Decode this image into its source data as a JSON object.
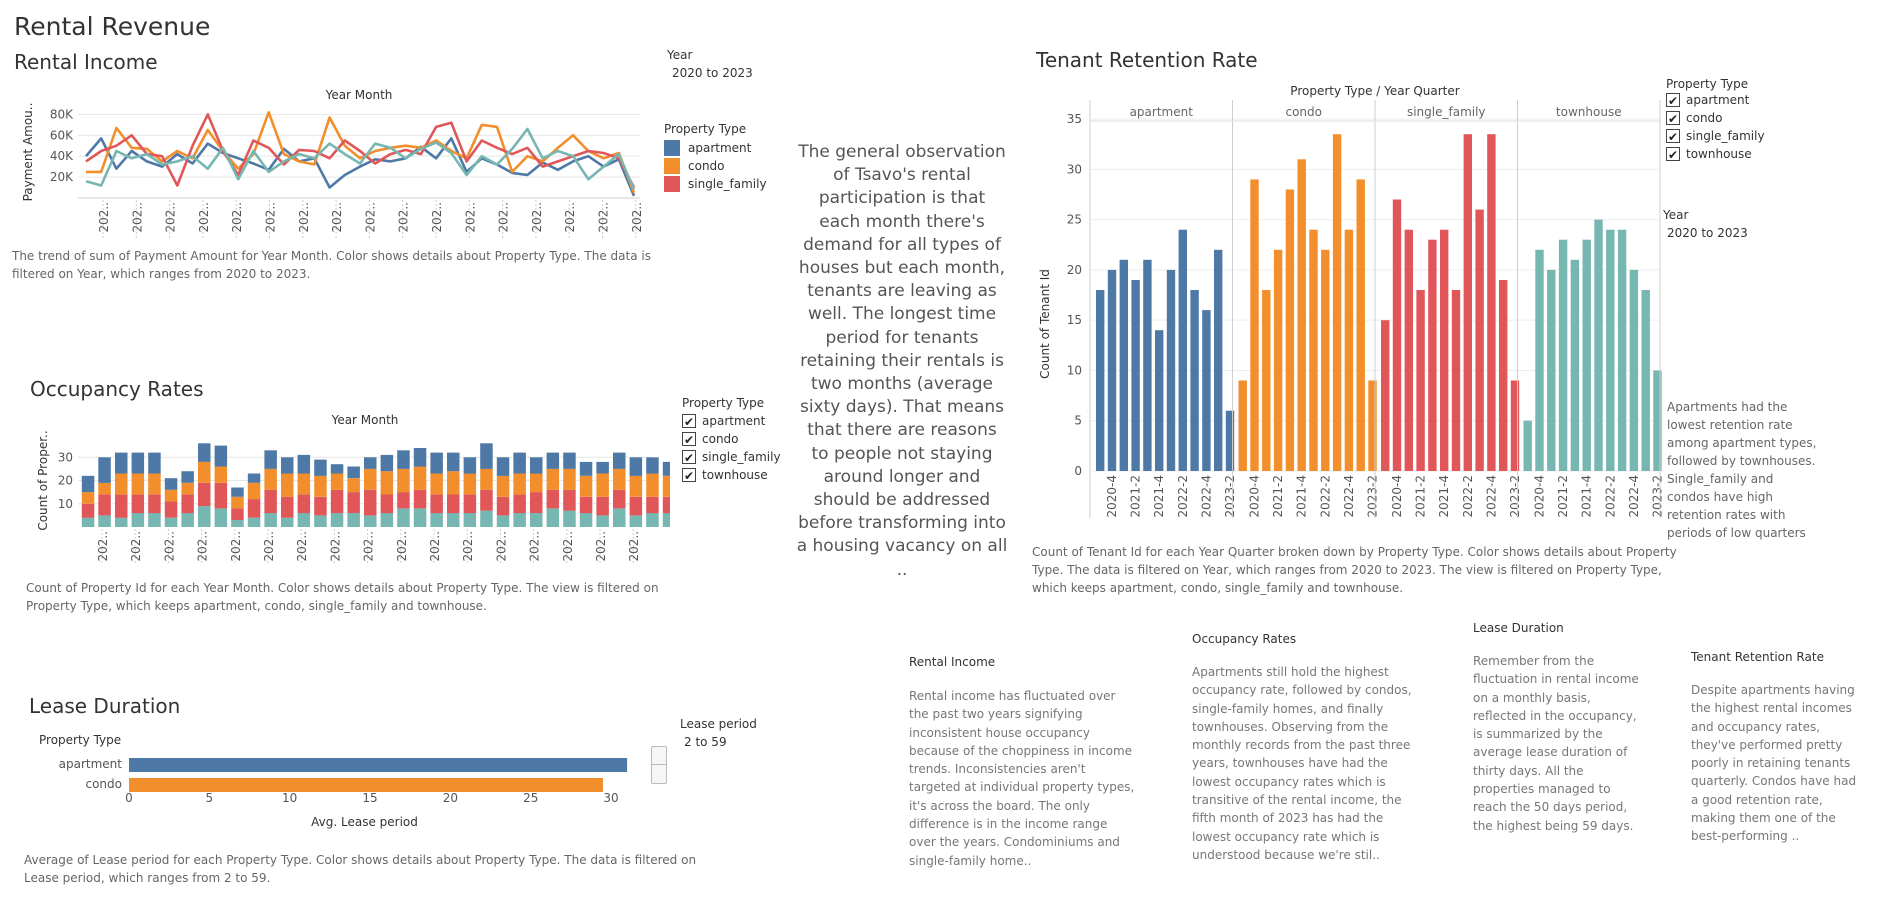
{
  "dashboard_title": "Rental Revenue",
  "rental_income": {
    "title": "Rental Income",
    "year_filter": {
      "label": "Year",
      "value": "2020 to 2023"
    },
    "legend": {
      "title": "Property Type",
      "items": [
        "apartment",
        "condo",
        "single_family"
      ]
    },
    "caption_1": "The trend of sum of Payment Amount for Year Month.  Color shows details about Property Type. The data is",
    "caption_2": "filtered on Year, which ranges from 2020 to 2023."
  },
  "occupancy": {
    "title": "Occupancy Rates",
    "legend": {
      "title": "Property Type",
      "items": [
        "apartment",
        "condo",
        "single_family",
        "townhouse"
      ]
    },
    "caption_1": "Count of Property Id for each Year Month.  Color shows details about Property Type. The view is filtered on",
    "caption_2": "Property Type, which keeps apartment, condo, single_family and townhouse."
  },
  "lease": {
    "title": "Lease   Duration",
    "filter": {
      "label": "Lease period",
      "value": "2 to 59"
    },
    "caption_1": "Average of Lease period for each Property Type.  Color shows details about Property Type. The data is filtered on",
    "caption_2": "Lease period, which ranges from 2 to 59."
  },
  "observation": "The general observation of Tsavo's rental participation is that each month there's demand for all types of houses but each month, tenants are leaving as well. The longest time period for tenants retaining their rentals is two months (average sixty days). That means that there are reasons to people not staying around longer and should be addressed before transforming into a housing vacancy on all ..",
  "retention": {
    "title": "Tenant Retention Rate",
    "legend": {
      "title": "Property Type",
      "items": [
        "apartment",
        "condo",
        "single_family",
        "townhouse"
      ]
    },
    "year_filter": {
      "label": "Year",
      "value": "2020 to 2023"
    },
    "side_note": "Apartments had the lowest retention rate among apartment types, followed by townhouses. Single_family and condos have high retention rates with periods of low quarters",
    "caption_1": "Count of Tenant Id for each Year Quarter broken down by Property Type.  Color shows details about Property",
    "caption_2": "Type. The data is filtered on Year, which ranges from 2020 to 2023. The view is filtered on Property Type,",
    "caption_3": "which keeps apartment, condo, single_family and townhouse."
  },
  "notes": [
    {
      "title": "Rental Income",
      "text": "Rental income has fluctuated over the past two years signifying inconsistent house occupancy because of the choppiness in income trends. Inconsistencies aren't targeted at individual property types, it's across the board. The only difference is in the income range over the years. Condominiums and single-family home.."
    },
    {
      "title": "Occupancy Rates",
      "text": "Apartments still hold the highest occupancy rate, followed by condos, single-family homes, and finally townhouses. Observing from the monthly records from the past three years, townhouses have had the lowest occupancy rates which is transitive of the rental income, the fifth month of 2023 has had the lowest occupancy rate which is understood because we're stil.."
    },
    {
      "title": "Lease Duration",
      "text": "Remember from the fluctuation in rental income on a monthly basis, reflected in the occupancy, is summarized by the average lease duration of thirty days. All the properties managed to reach the 50 days period, the highest being 59 days."
    },
    {
      "title": "Tenant Retention Rate",
      "text": "Despite apartments having the highest rental incomes and occupancy rates, they've performed pretty poorly in retaining tenants quarterly. Condos have had a good retention rate, making them one of the best-performing .."
    }
  ],
  "colors": {
    "apartment": "#4e79a7",
    "condo": "#f28e2b",
    "single_family": "#e15759",
    "townhouse": "#76b7b2"
  },
  "chart_data": [
    {
      "type": "line",
      "chart": "Rental Income",
      "xlabel": "Year Month",
      "ylabel": "Payment Amou..",
      "y_ticks": [
        "20K",
        "40K",
        "60K",
        "80K"
      ],
      "ylim": [
        0,
        88000
      ],
      "x_tick_label": "202..",
      "series": [
        {
          "name": "apartment",
          "values": [
            40000,
            57000,
            28000,
            45000,
            35000,
            30000,
            42000,
            33000,
            52000,
            43000,
            38000,
            33000,
            27000,
            47000,
            35000,
            38000,
            10000,
            22000,
            30000,
            37000,
            35000,
            38000,
            49000,
            38000,
            57000,
            25000,
            38000,
            32000,
            24000,
            22000,
            34000,
            27000,
            35000,
            40000,
            30000,
            37000,
            2000
          ]
        },
        {
          "name": "condo",
          "values": [
            25000,
            25000,
            67000,
            48000,
            47000,
            35000,
            45000,
            38000,
            65000,
            45000,
            28000,
            42000,
            82000,
            42000,
            35000,
            32000,
            77000,
            50000,
            38000,
            45000,
            48000,
            50000,
            48000,
            55000,
            45000,
            38000,
            70000,
            68000,
            25000,
            40000,
            35000,
            48000,
            60000,
            45000,
            38000,
            43000,
            5000
          ]
        },
        {
          "name": "single_family",
          "values": [
            35000,
            45000,
            50000,
            60000,
            42000,
            40000,
            12000,
            50000,
            80000,
            45000,
            22000,
            55000,
            48000,
            32000,
            46000,
            45000,
            38000,
            55000,
            45000,
            33000,
            42000,
            46000,
            42000,
            68000,
            72000,
            35000,
            55000,
            48000,
            42000,
            48000,
            30000,
            35000,
            40000,
            45000,
            43000,
            38000,
            10000
          ]
        },
        {
          "name": "townhouse",
          "values": [
            16000,
            12000,
            45000,
            38000,
            42000,
            32000,
            35000,
            40000,
            28000,
            48000,
            18000,
            45000,
            25000,
            35000,
            42000,
            38000,
            52000,
            42000,
            33000,
            52000,
            48000,
            38000,
            47000,
            53000,
            43000,
            22000,
            40000,
            32000,
            47000,
            66000,
            38000,
            45000,
            40000,
            18000,
            30000,
            42000,
            8000
          ]
        }
      ]
    },
    {
      "type": "bar",
      "stacked": true,
      "chart": "Occupancy Rates",
      "xlabel": "Year Month",
      "ylabel": "Count of Proper..",
      "y_ticks": [
        "10",
        "20",
        "30"
      ],
      "ylim": [
        0,
        40
      ],
      "x_tick_label": "202..",
      "series": [
        {
          "name": "apartment",
          "values": [
            7,
            11,
            9,
            9,
            9,
            5,
            5,
            8,
            9,
            4,
            4,
            8,
            7,
            8,
            7,
            4,
            5,
            5,
            7,
            8,
            8,
            9,
            8,
            7,
            11,
            8,
            9,
            7,
            7,
            7,
            6,
            5,
            7,
            8,
            7,
            6,
            1
          ]
        },
        {
          "name": "condo",
          "values": [
            5,
            5,
            9,
            9,
            9,
            5,
            5,
            9,
            7,
            5,
            7,
            9,
            10,
            9,
            9,
            7,
            6,
            9,
            10,
            10,
            10,
            9,
            10,
            9,
            9,
            9,
            9,
            8,
            9,
            9,
            9,
            10,
            9,
            9,
            10,
            9,
            1
          ]
        },
        {
          "name": "single_family",
          "values": [
            6,
            9,
            10,
            8,
            8,
            7,
            8,
            10,
            11,
            5,
            8,
            10,
            9,
            8,
            8,
            10,
            9,
            11,
            8,
            7,
            8,
            8,
            8,
            8,
            9,
            8,
            8,
            9,
            8,
            9,
            7,
            8,
            8,
            8,
            7,
            7,
            1
          ]
        },
        {
          "name": "townhouse",
          "values": [
            4,
            5,
            4,
            6,
            6,
            4,
            6,
            9,
            8,
            3,
            4,
            6,
            4,
            6,
            5,
            6,
            6,
            5,
            6,
            8,
            8,
            6,
            6,
            6,
            7,
            5,
            6,
            6,
            8,
            7,
            6,
            5,
            8,
            5,
            6,
            6,
            2
          ]
        }
      ]
    },
    {
      "type": "bar",
      "orientation": "horizontal",
      "chart": "Lease Duration",
      "xlabel": "Avg. Lease period",
      "ylabel": "Property Type",
      "categories": [
        "apartment",
        "condo"
      ],
      "values": [
        31,
        29.5
      ],
      "xlim": [
        0,
        31.8
      ],
      "x_ticks": [
        0,
        5,
        10,
        15,
        20,
        25,
        30
      ]
    },
    {
      "type": "bar",
      "chart": "Tenant Retention Rate",
      "title": "Property Type  /  Year Quarter",
      "ylabel": "Count of Tenant Id",
      "ylim": [
        0,
        36.5
      ],
      "y_ticks": [
        0,
        5,
        10,
        15,
        20,
        25,
        30,
        35
      ],
      "x_tick_labels": [
        "2020-4",
        "2021-2",
        "2021-4",
        "2022-2",
        "2022-4",
        "2023-2"
      ],
      "panels": [
        {
          "name": "apartment",
          "values": [
            18,
            20,
            21,
            19,
            21,
            14,
            20,
            24,
            18,
            16,
            22,
            6
          ]
        },
        {
          "name": "condo",
          "values": [
            9,
            29,
            18,
            22,
            28,
            31,
            24,
            22,
            33.5,
            24,
            29,
            9
          ]
        },
        {
          "name": "single_family",
          "values": [
            15,
            27,
            24,
            18,
            23,
            24,
            18,
            33.5,
            26,
            33.5,
            19,
            9
          ]
        },
        {
          "name": "townhouse",
          "values": [
            5,
            22,
            20,
            23,
            21,
            23,
            25,
            24,
            24,
            20,
            18,
            10
          ]
        }
      ]
    }
  ]
}
